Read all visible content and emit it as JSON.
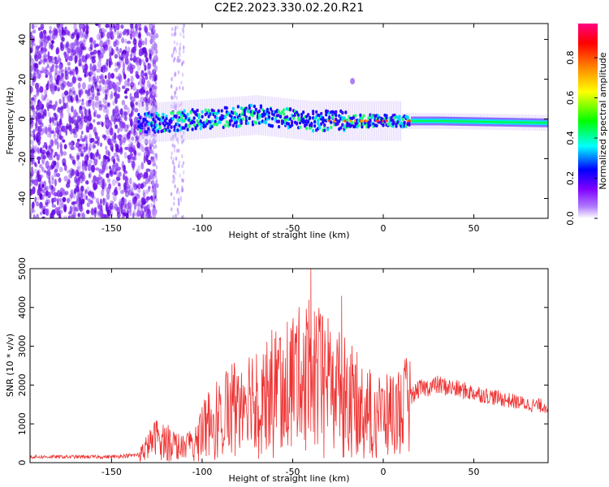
{
  "title": "C2E2.2023.330.02.20.R21",
  "chart_data": [
    {
      "type": "heatmap",
      "xlabel": "Height of straight line (km)",
      "ylabel": "Frequency (Hz)",
      "xlim": [
        -195,
        91
      ],
      "ylim": [
        -50,
        48
      ],
      "xticks": [
        -150,
        -100,
        -50,
        0,
        50
      ],
      "yticks": [
        -40,
        -20,
        0,
        20,
        40
      ],
      "colorbar": {
        "label": "Normalized spectral amplitude",
        "range": [
          0,
          0.97
        ],
        "ticks": [
          "0.0",
          "0.2",
          "0.4",
          "0.6",
          "0.8"
        ],
        "tick_values": [
          0.0,
          0.2,
          0.4,
          0.6,
          0.8
        ],
        "colors": [
          "#ffffff",
          "#7f00ff",
          "#0000ff",
          "#00ffff",
          "#00ff00",
          "#ffff00",
          "#ff8000",
          "#ff0000",
          "#ff0080"
        ]
      },
      "signal_band_center_hz": [
        {
          "x": -130,
          "y": -2
        },
        {
          "x": -100,
          "y": 0
        },
        {
          "x": -70,
          "y": 2
        },
        {
          "x": -40,
          "y": -1
        },
        {
          "x": -20,
          "y": -1
        },
        {
          "x": 0,
          "y": -1
        },
        {
          "x": 30,
          "y": -1
        },
        {
          "x": 91,
          "y": -2
        }
      ]
    },
    {
      "type": "line",
      "xlabel": "Height of straight line (km)",
      "ylabel": "SNR (10 * v/v)",
      "xlim": [
        -195,
        91
      ],
      "ylim": [
        0,
        5000
      ],
      "xticks": [
        -150,
        -100,
        -50,
        0,
        50
      ],
      "yticks": [
        0,
        1000,
        2000,
        3000,
        4000,
        5000
      ],
      "color": "#ee3333",
      "envelope": [
        {
          "x": -195,
          "y": 150
        },
        {
          "x": -150,
          "y": 150
        },
        {
          "x": -135,
          "y": 200
        },
        {
          "x": -125,
          "y": 700
        },
        {
          "x": -110,
          "y": 400
        },
        {
          "x": -100,
          "y": 900
        },
        {
          "x": -90,
          "y": 1400
        },
        {
          "x": -80,
          "y": 1700
        },
        {
          "x": -70,
          "y": 1900
        },
        {
          "x": -60,
          "y": 2100
        },
        {
          "x": -50,
          "y": 2300
        },
        {
          "x": -40,
          "y": 2500
        },
        {
          "x": -30,
          "y": 2200
        },
        {
          "x": -20,
          "y": 1900
        },
        {
          "x": -10,
          "y": 1500
        },
        {
          "x": 0,
          "y": 1300
        },
        {
          "x": 10,
          "y": 1500
        },
        {
          "x": 20,
          "y": 1900
        },
        {
          "x": 30,
          "y": 2000
        },
        {
          "x": 40,
          "y": 1900
        },
        {
          "x": 50,
          "y": 1800
        },
        {
          "x": 60,
          "y": 1700
        },
        {
          "x": 70,
          "y": 1600
        },
        {
          "x": 80,
          "y": 1500
        },
        {
          "x": 91,
          "y": 1450
        }
      ],
      "peaks": [
        {
          "x": -40,
          "y": 5000
        },
        {
          "x": -41,
          "y": 4200
        },
        {
          "x": -23,
          "y": 4300
        },
        {
          "x": -38,
          "y": 3900
        },
        {
          "x": -70,
          "y": 2800
        },
        {
          "x": -60,
          "y": 3200
        },
        {
          "x": -50,
          "y": 3500
        },
        {
          "x": -30,
          "y": 3100
        },
        {
          "x": -20,
          "y": 2700
        }
      ]
    }
  ]
}
